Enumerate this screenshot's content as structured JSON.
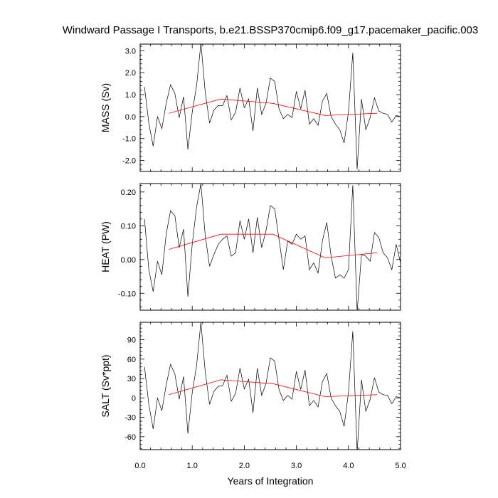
{
  "chart_data": {
    "type": "line",
    "title": "Windward Passage I Transports, b.e21.BSSP370cmip6.f09_g17.pacemaker_pacific.003",
    "xlabel": "Years of Integration",
    "xlim": [
      0.0,
      5.0
    ],
    "xticks": [
      "0.0",
      "1.0",
      "2.0",
      "3.0",
      "4.0",
      "5.0"
    ],
    "x": [
      0.083,
      0.167,
      0.25,
      0.333,
      0.417,
      0.5,
      0.583,
      0.667,
      0.75,
      0.833,
      0.917,
      1.0,
      1.083,
      1.167,
      1.25,
      1.333,
      1.417,
      1.5,
      1.583,
      1.667,
      1.75,
      1.833,
      1.917,
      2.0,
      2.083,
      2.167,
      2.25,
      2.333,
      2.417,
      2.5,
      2.583,
      2.667,
      2.75,
      2.833,
      2.917,
      3.0,
      3.083,
      3.167,
      3.25,
      3.333,
      3.417,
      3.5,
      3.583,
      3.667,
      3.75,
      3.833,
      3.917,
      4.0,
      4.083,
      4.167,
      4.25,
      4.333,
      4.417,
      4.5,
      4.583,
      4.667,
      4.75,
      4.833,
      4.917,
      5.0
    ],
    "panels": [
      {
        "ylabel": "MASS (Sv)",
        "ylim": [
          -2.5,
          3.3
        ],
        "yticks": [
          -2,
          -1,
          0,
          1,
          2,
          3
        ],
        "ytick_labels": [
          "-2.0",
          "-1.0",
          "0.0",
          "1.0",
          "2.0",
          "3.0"
        ],
        "series": [
          {
            "color": "#000000",
            "values": [
              1.35,
              -0.3,
              -1.35,
              0.0,
              -0.55,
              0.6,
              1.45,
              1.05,
              -0.05,
              0.9,
              -1.5,
              0.2,
              1.4,
              3.35,
              1.1,
              -0.3,
              0.3,
              0.5,
              0.5,
              0.95,
              -0.15,
              0.2,
              1.3,
              0.4,
              0.8,
              -0.65,
              1.3,
              0.1,
              0.6,
              1.75,
              1.6,
              0.35,
              -0.1,
              0.1,
              -0.05,
              1.15,
              0.35,
              1.2,
              -0.35,
              -0.1,
              -0.4,
              0.7,
              1.05,
              0.0,
              -0.35,
              -0.6,
              -1.2,
              0.2,
              2.9,
              -2.4,
              0.8,
              -0.6,
              -0.05,
              0.85,
              0.25,
              0.15,
              0.1,
              -0.25,
              0.05,
              0.0
            ]
          },
          {
            "color": "#ff0000",
            "x": [
              0.55,
              1.55,
              2.55,
              3.55,
              4.55
            ],
            "values": [
              0.15,
              0.8,
              0.6,
              0.05,
              0.15
            ]
          }
        ]
      },
      {
        "ylabel": "HEAT (PW)",
        "ylim": [
          -0.15,
          0.225
        ],
        "yticks": [
          -0.1,
          0.0,
          0.1,
          0.2
        ],
        "ytick_labels": [
          "-0.10",
          "0.00",
          "0.10",
          "0.20"
        ],
        "series": [
          {
            "color": "#000000",
            "values": [
              0.12,
              -0.03,
              -0.095,
              -0.005,
              -0.045,
              0.075,
              0.145,
              0.13,
              0.035,
              0.09,
              -0.11,
              0.045,
              0.155,
              0.225,
              0.07,
              -0.02,
              0.015,
              0.045,
              0.06,
              0.07,
              0.01,
              0.02,
              0.115,
              0.06,
              0.12,
              0.02,
              0.125,
              0.035,
              0.085,
              0.16,
              0.15,
              0.06,
              -0.03,
              0.055,
              0.045,
              0.075,
              0.06,
              0.07,
              -0.03,
              -0.01,
              -0.04,
              0.055,
              0.11,
              0.01,
              -0.055,
              -0.045,
              -0.055,
              -0.03,
              0.22,
              -0.155,
              0.015,
              0.01,
              -0.005,
              0.08,
              0.065,
              0.02,
              0.005,
              -0.03,
              0.045,
              -0.01
            ]
          },
          {
            "color": "#ff0000",
            "x": [
              0.55,
              1.55,
              2.55,
              3.55,
              4.55
            ],
            "values": [
              0.03,
              0.075,
              0.075,
              0.005,
              0.02
            ]
          }
        ]
      },
      {
        "ylabel": "SALT (Sv*ppt)",
        "ylim": [
          -80,
          117
        ],
        "yticks": [
          -60,
          -30,
          0,
          30,
          60,
          90
        ],
        "ytick_labels": [
          "-60",
          "-30",
          "0",
          "30",
          "60",
          "90"
        ],
        "series": [
          {
            "color": "#000000",
            "values": [
              48,
              -10,
              -48,
              0,
              -20,
              20,
              52,
              37,
              -2,
              33,
              -55,
              8,
              50,
              117,
              40,
              -10,
              10,
              18,
              19,
              35,
              -5,
              7,
              46,
              14,
              29,
              -23,
              46,
              4,
              22,
              62,
              57,
              13,
              -4,
              4,
              -2,
              41,
              13,
              43,
              -12,
              -4,
              -14,
              25,
              38,
              0,
              -12,
              -21,
              -44,
              8,
              103,
              -85,
              28,
              -21,
              -2,
              31,
              9,
              5,
              4,
              -9,
              2,
              0
            ]
          },
          {
            "color": "#ff0000",
            "x": [
              0.55,
              1.55,
              2.55,
              3.55,
              4.55
            ],
            "values": [
              5,
              28,
              22,
              2,
              5
            ]
          }
        ]
      }
    ]
  }
}
